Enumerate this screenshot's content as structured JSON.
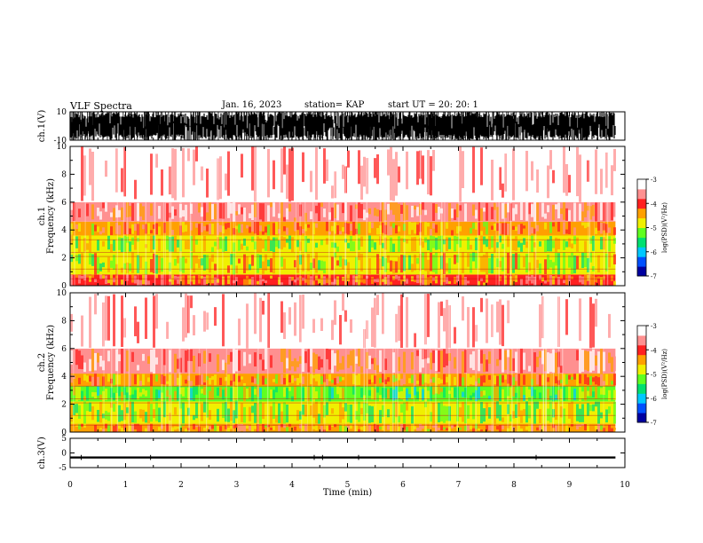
{
  "header": {
    "title": "VLF Spectra",
    "date": "Jan. 16, 2023",
    "station": "station= KAP",
    "start_ut": "start  UT  =   20: 20: 1"
  },
  "colors": {
    "spectrogram_scale": [
      "#0000a0",
      "#0050ff",
      "#00c8ff",
      "#00e070",
      "#60ff20",
      "#f0f000",
      "#ffa000",
      "#ff2020",
      "#ff9090",
      "#ffffff"
    ],
    "waveform": "#000000"
  },
  "chart_data": [
    {
      "type": "line",
      "panel": "ch1-waveform",
      "ylabel": "ch.1(V)",
      "yticklabels": [
        "10",
        "-10"
      ],
      "ylim": [
        -10,
        10
      ],
      "description_of_series": "dense waveform filling the panel",
      "x": [
        0,
        1,
        2,
        3,
        4,
        5,
        6,
        7,
        8,
        9,
        9.83
      ],
      "y_envelope_upper": [
        10,
        10,
        10,
        10,
        10,
        10,
        10,
        10,
        10,
        10,
        10
      ],
      "y_envelope_lower": [
        -10,
        -10,
        -10,
        -10,
        -10,
        -10,
        -10,
        -10,
        -10,
        -10,
        -10
      ]
    },
    {
      "type": "heatmap",
      "panel": "ch1-spectrogram",
      "ylabel": "ch.1\nFrequency (kHz)",
      "ylabel_lines": [
        "ch.1",
        "Frequency (kHz)"
      ],
      "yticklabels": [
        "0",
        "2",
        "4",
        "6",
        "8",
        "10"
      ],
      "ylim": [
        0,
        10
      ],
      "xlim": [
        0,
        9.83
      ],
      "colorbar": {
        "label": "log(PSD)(V²/Hz)",
        "ticklabels": [
          "-3",
          "-4",
          "-5",
          "-6",
          "-7"
        ],
        "range": [
          -7,
          -3
        ]
      },
      "bands_khz": [
        {
          "from": 0,
          "to": 0.8,
          "log_psd": -4.2
        },
        {
          "from": 0.8,
          "to": 2.4,
          "log_psd": -4.8
        },
        {
          "from": 2.4,
          "to": 3.6,
          "log_psd": -5.0
        },
        {
          "from": 3.6,
          "to": 4.6,
          "log_psd": -4.3
        },
        {
          "from": 4.6,
          "to": 6.0,
          "log_psd": -3.8
        },
        {
          "from": 6.0,
          "to": 10,
          "log_psd": -3.3
        }
      ]
    },
    {
      "type": "heatmap",
      "panel": "ch2-spectrogram",
      "ylabel": "ch.2\nFrequency (kHz)",
      "ylabel_lines": [
        "ch.2",
        "Frequency (kHz)"
      ],
      "yticklabels": [
        "0",
        "2",
        "4",
        "6",
        "8",
        "10"
      ],
      "ylim": [
        0,
        10
      ],
      "xlim": [
        0,
        9.83
      ],
      "colorbar": {
        "label": "log(PSD)(V²/Hz)",
        "ticklabels": [
          "-3",
          "-4",
          "-5",
          "-6",
          "-7"
        ],
        "range": [
          -7,
          -3
        ]
      },
      "bands_khz": [
        {
          "from": 0,
          "to": 0.6,
          "log_psd": -4.3
        },
        {
          "from": 0.6,
          "to": 2.2,
          "log_psd": -5.0
        },
        {
          "from": 2.2,
          "to": 3.3,
          "log_psd": -5.2
        },
        {
          "from": 3.3,
          "to": 4.2,
          "log_psd": -4.4
        },
        {
          "from": 4.2,
          "to": 6.0,
          "log_psd": -3.8
        },
        {
          "from": 6.0,
          "to": 10,
          "log_psd": -3.3
        }
      ]
    },
    {
      "type": "line",
      "panel": "ch3-waveform",
      "ylabel": "ch.3(V)",
      "yticklabels": [
        "5",
        "0",
        "-5"
      ],
      "ylim": [
        -5,
        5
      ],
      "x": [
        0,
        2,
        4,
        6,
        8,
        9.83
      ],
      "y_envelope_upper": [
        -1.2,
        -1.2,
        -1.2,
        -1.2,
        -1.2,
        -1.2
      ],
      "y_envelope_lower": [
        -1.9,
        -1.9,
        -1.9,
        -1.9,
        -1.9,
        -1.9
      ]
    }
  ],
  "xaxis": {
    "label": "Time (min)",
    "ticklabels": [
      "0",
      "1",
      "2",
      "3",
      "4",
      "5",
      "6",
      "7",
      "8",
      "9",
      "10"
    ],
    "xlim": [
      0,
      10
    ]
  }
}
